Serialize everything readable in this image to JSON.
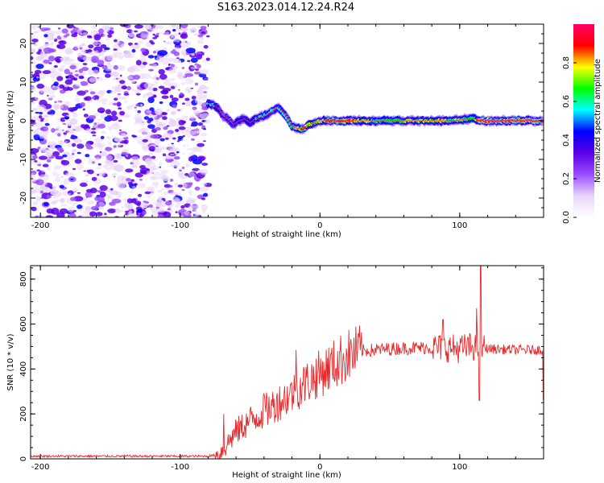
{
  "title": "S163.2023.014.12.24.R24",
  "chart_data": [
    {
      "type": "heatmap",
      "xlabel": "Height of straight line (km)",
      "ylabel": "Frequency (Hz)",
      "xlim": [
        -207,
        160
      ],
      "ylim": [
        -25,
        25
      ],
      "xticks": [
        -200,
        -100,
        0,
        100
      ],
      "yticks": [
        -20,
        -10,
        0,
        10,
        20
      ],
      "colorbar": {
        "label": "Normalized spectral amplitude",
        "range": [
          0,
          1
        ],
        "ticks": [
          "0.0",
          "0.2",
          "0.4",
          "0.6",
          "0.8"
        ],
        "colors": [
          "#ffffff",
          "#e8d4f8",
          "#9b4dff",
          "#5a00e6",
          "#0000ff",
          "#00ffff",
          "#00ff00",
          "#ffff00",
          "#ff0000",
          "#ff0066"
        ]
      },
      "noise_region_x": [
        -207,
        -80
      ],
      "signal_ridge": {
        "x": [
          -80,
          -76,
          -72,
          -70,
          -66,
          -62,
          -58,
          -54,
          -50,
          -46,
          -42,
          -38,
          -34,
          -30,
          -27,
          -24,
          -20,
          -16,
          -12,
          -8,
          -4,
          0,
          10,
          20,
          40,
          60,
          80,
          95,
          100,
          105,
          110,
          115,
          130,
          160
        ],
        "y": [
          4.5,
          4.0,
          3.0,
          1.5,
          0.5,
          -1.0,
          0.0,
          0.5,
          -0.5,
          0.5,
          1.0,
          1.5,
          2.5,
          3.5,
          2.5,
          1.0,
          -1.5,
          -2.0,
          -2.0,
          -1.0,
          -0.5,
          0.0,
          0.0,
          0.0,
          0.0,
          0.0,
          0.0,
          0.0,
          0.2,
          0.5,
          0.5,
          0.0,
          0.0,
          0.0
        ],
        "amplitude": [
          0.5,
          0.55,
          0.45,
          0.4,
          0.42,
          0.45,
          0.48,
          0.5,
          0.48,
          0.5,
          0.52,
          0.55,
          0.6,
          0.55,
          0.58,
          0.6,
          0.65,
          0.75,
          0.9,
          0.8,
          0.7,
          0.75,
          0.92,
          0.88,
          0.7,
          0.72,
          0.78,
          0.7,
          0.75,
          0.7,
          0.65,
          0.95,
          0.98,
          0.95
        ]
      }
    },
    {
      "type": "line",
      "xlabel": "Height of straight line (km)",
      "ylabel": "SNR (10 * v/v)",
      "xlim": [
        -207,
        160
      ],
      "ylim": [
        0,
        860
      ],
      "xticks": [
        -200,
        -100,
        0,
        100
      ],
      "yticks": [
        0,
        200,
        400,
        600,
        800
      ],
      "line_color": "#e8282a",
      "envelope": {
        "x": [
          -207,
          -150,
          -80,
          -72,
          -68,
          -65,
          -60,
          -50,
          -40,
          -30,
          -20,
          -10,
          0,
          10,
          20,
          30,
          50,
          70,
          90,
          100,
          110,
          120,
          140,
          160
        ],
        "y": [
          12,
          12,
          12,
          20,
          50,
          80,
          120,
          170,
          210,
          250,
          290,
          340,
          380,
          420,
          460,
          480,
          490,
          495,
          495,
          490,
          500,
          490,
          485,
          485
        ]
      },
      "spikes": [
        {
          "x": -69,
          "y": 200
        },
        {
          "x": -40,
          "y": 290
        },
        {
          "x": -17,
          "y": 485
        },
        {
          "x": 88,
          "y": 620
        },
        {
          "x": 112,
          "y": 670
        },
        {
          "x": 114,
          "y": 260
        },
        {
          "x": 115,
          "y": 860
        },
        {
          "x": 160,
          "y": 260
        }
      ]
    }
  ]
}
